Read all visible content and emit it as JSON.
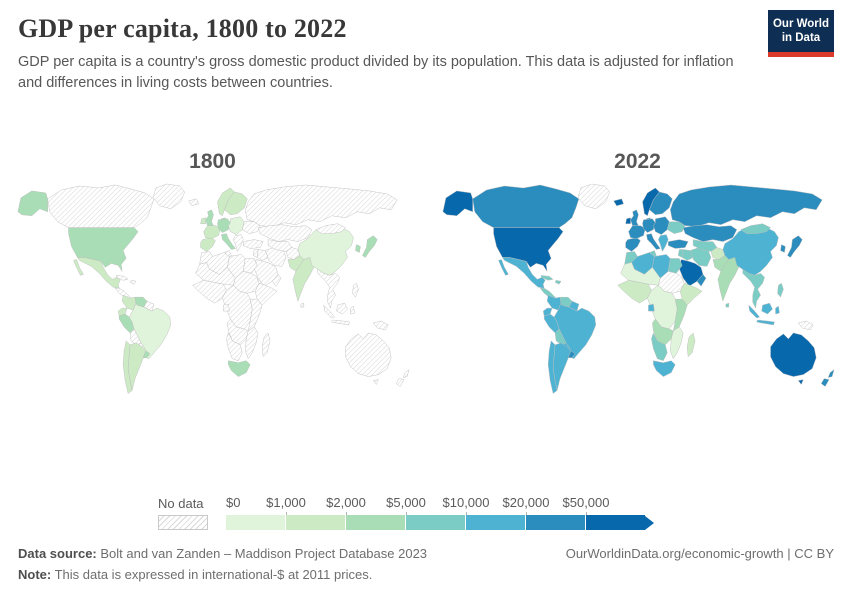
{
  "header": {
    "title": "GDP per capita, 1800 to 2022",
    "subtitle": "GDP per capita is a country's gross domestic product divided by its population. This data is adjusted for inflation and differences in living costs between countries.",
    "logo_line1": "Our World",
    "logo_line2": "in Data",
    "logo_bg": "#0f2e54",
    "logo_accent": "#dc3a2b"
  },
  "chart_data": {
    "type": "heatmap",
    "subtype": "choropleth-world-map-pair",
    "title": "GDP per capita, 1800 to 2022",
    "unit": "international-$ at 2011 prices",
    "legend": {
      "no_data_label": "No data",
      "ticks": [
        "$0",
        "$1,000",
        "$2,000",
        "$5,000",
        "$10,000",
        "$20,000",
        "$50,000"
      ],
      "buckets": [
        "b1",
        "b2",
        "b3",
        "b4",
        "b5",
        "b6",
        "b7"
      ],
      "bucket_ranges": [
        "$0-$1,000",
        "$1,000-$2,000",
        "$2,000-$5,000",
        "$5,000-$10,000",
        "$10,000-$20,000",
        "$20,000-$50,000",
        "$50,000+"
      ],
      "colors": [
        "#e0f3db",
        "#ccebc5",
        "#a8ddb5",
        "#7bccc4",
        "#4eb3d3",
        "#2b8cbe",
        "#0868ac"
      ],
      "no_data_pattern": "diagonal-hatch"
    },
    "maps": [
      {
        "year": "1800",
        "regions": {
          "alaska": "b3",
          "canada": "nd",
          "greenland": "nd",
          "iceland": "nd",
          "usa": "b3",
          "mexico": "b2",
          "central-america": "nd",
          "cuba": "nd",
          "hispaniola": "nd",
          "colombia": "b2",
          "venezuela": "b3",
          "guyanas": "nd",
          "ecuador": "b2",
          "peru": "b3",
          "brazil": "b1",
          "bolivia": "nd",
          "paraguay": "nd",
          "chile": "b2",
          "argentina": "b2",
          "uruguay": "b3",
          "uk": "b3",
          "ireland": "b2",
          "norway": "b2",
          "sweden-finland": "b2",
          "denmark": "b3",
          "iberia": "b2",
          "france": "b2",
          "germany-central": "b3",
          "italy": "b3",
          "eastern-europe": "b1",
          "balkans": "nd",
          "ukraine": "nd",
          "russia": "nd",
          "turkey": "nd",
          "levant": "nd",
          "iraq": "nd",
          "iran": "nd",
          "saudi": "nd",
          "yemen": "nd",
          "oman": "nd",
          "kazakhstan": "nd",
          "central-asia": "nd",
          "afghanistan": "nd",
          "pakistan": "b2",
          "india": "b2",
          "sri-lanka": "nd",
          "china": "b1",
          "mongolia": "nd",
          "korea": "b3",
          "japan": "b3",
          "se-asia": "nd",
          "philippines": "nd",
          "indonesia": "nd",
          "png": "nd",
          "australia": "nd",
          "nz": "nd",
          "morocco": "nd",
          "algeria": "nd",
          "tunisia": "nd",
          "libya": "nd",
          "egypt": "nd",
          "sahel": "nd",
          "west-africa": "nd",
          "sudan": "nd",
          "horn": "nd",
          "central-africa": "nd",
          "gabon": "nd",
          "east-africa": "nd",
          "angola-zambia": "nd",
          "mozambique-zimbabwe": "nd",
          "namibia-botswana": "nd",
          "south-africa": "b3",
          "madagascar": "nd"
        }
      },
      {
        "year": "2022",
        "regions": {
          "alaska": "b7",
          "canada": "b6",
          "greenland": "nd",
          "iceland": "b7",
          "usa": "b7",
          "mexico": "b5",
          "central-america": "b4",
          "cuba": "b4",
          "hispaniola": "b4",
          "colombia": "b5",
          "venezuela": "b4",
          "guyanas": "b5",
          "ecuador": "b5",
          "peru": "b5",
          "brazil": "b5",
          "bolivia": "b4",
          "paraguay": "b5",
          "chile": "b5",
          "argentina": "b5",
          "uruguay": "b6",
          "uk": "b6",
          "ireland": "b7",
          "norway": "b7",
          "sweden-finland": "b6",
          "denmark": "b6",
          "iberia": "b6",
          "france": "b6",
          "germany-central": "b6",
          "italy": "b6",
          "eastern-europe": "b6",
          "balkans": "b5",
          "ukraine": "b4",
          "russia": "b6",
          "turkey": "b6",
          "levant": "b4",
          "iraq": "b4",
          "iran": "b4",
          "saudi": "b7",
          "yemen": "nd",
          "oman": "b6",
          "kazakhstan": "b6",
          "central-asia": "b4",
          "afghanistan": "b2",
          "pakistan": "b3",
          "india": "b3",
          "sri-lanka": "b4",
          "china": "b5",
          "mongolia": "b4",
          "korea": "b6",
          "japan": "b6",
          "se-asia": "b4",
          "philippines": "b4",
          "indonesia": "b5",
          "png": "nd",
          "australia": "b7",
          "nz": "b6",
          "morocco": "b4",
          "algeria": "b5",
          "tunisia": "b4",
          "libya": "b5",
          "egypt": "b4",
          "sahel": "b1",
          "west-africa": "b2",
          "sudan": "nd",
          "horn": "b2",
          "central-africa": "b1",
          "gabon": "b5",
          "east-africa": "b3",
          "angola-zambia": "b3",
          "mozambique-zimbabwe": "b1",
          "namibia-botswana": "b4",
          "south-africa": "b5",
          "madagascar": "b2"
        }
      }
    ]
  },
  "footer": {
    "datasource_label": "Data source:",
    "datasource": " Bolt and van Zanden – Maddison Project Database 2023",
    "note_label": "Note:",
    "note": " This data is expressed in international-$ at 2011 prices.",
    "credit": "OurWorldinData.org/economic-growth | CC BY"
  }
}
